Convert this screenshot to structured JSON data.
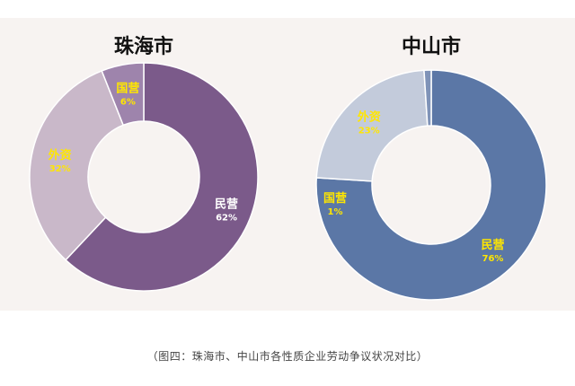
{
  "chart_data": [
    {
      "type": "pie",
      "title": "珠海市",
      "categories": [
        "民营",
        "外资",
        "国营"
      ],
      "values": [
        62,
        32,
        6
      ],
      "value_labels": [
        "62%",
        "32%",
        "6%"
      ],
      "colors": [
        "#7b5a8a",
        "#c9b8c9",
        "#9e84ac"
      ],
      "label_colors": [
        "#ffffff",
        "#ffe600",
        "#ffe600"
      ],
      "donut": true
    },
    {
      "type": "pie",
      "title": "中山市",
      "categories": [
        "民营",
        "外资",
        "国营"
      ],
      "values": [
        76,
        23,
        1
      ],
      "value_labels": [
        "76%",
        "23%",
        "1%"
      ],
      "colors": [
        "#5b77a6",
        "#c3cbdb",
        "#7f93b8"
      ],
      "label_colors": [
        "#ffe600",
        "#ffe600",
        "#ffe600"
      ],
      "donut": true
    }
  ],
  "caption": "（图四：珠海市、中山市各性质企业劳动争议状况对比）"
}
